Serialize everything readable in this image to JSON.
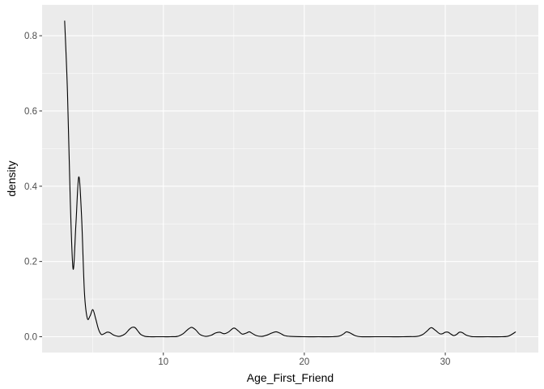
{
  "chart_data": {
    "type": "line",
    "title": "",
    "xlabel": "Age_First_Friend",
    "ylabel": "density",
    "xlim": [
      1.4,
      36.6
    ],
    "ylim": [
      -0.042,
      0.882
    ],
    "x_ticks": [
      10,
      20,
      30
    ],
    "y_ticks": [
      0.0,
      0.2,
      0.4,
      0.6,
      0.8
    ],
    "x_tick_labels": [
      "10",
      "20",
      "30"
    ],
    "y_tick_labels": [
      "0.0",
      "0.2",
      "0.4",
      "0.6",
      "0.8"
    ],
    "grid": true,
    "legend": "none",
    "series": [
      {
        "color": "#000000",
        "x": [
          3.0,
          3.2,
          3.4,
          3.6,
          3.8,
          4.0,
          4.2,
          4.4,
          4.6,
          4.8,
          5.0,
          5.2,
          5.4,
          5.6,
          5.8,
          6.0,
          6.2,
          6.5,
          6.8,
          7.0,
          7.3,
          7.6,
          7.8,
          8.0,
          8.2,
          8.4,
          8.7,
          9.0,
          9.5,
          10.0,
          10.5,
          11.0,
          11.4,
          11.7,
          12.0,
          12.3,
          12.6,
          13.0,
          13.4,
          13.7,
          14.0,
          14.3,
          14.6,
          15.0,
          15.3,
          15.6,
          15.9,
          16.1,
          16.3,
          16.6,
          17.0,
          17.4,
          17.7,
          18.0,
          18.3,
          18.6,
          19.0,
          20.0,
          21.0,
          22.0,
          22.5,
          22.8,
          23.0,
          23.3,
          23.6,
          24.0,
          25.0,
          26.0,
          27.0,
          28.0,
          28.4,
          28.7,
          29.0,
          29.3,
          29.6,
          29.8,
          30.0,
          30.2,
          30.4,
          30.6,
          30.8,
          31.0,
          31.2,
          31.5,
          31.8,
          32.0,
          33.0,
          34.0,
          34.5,
          35.0
        ],
        "y": [
          0.84,
          0.65,
          0.36,
          0.18,
          0.3,
          0.425,
          0.32,
          0.12,
          0.05,
          0.055,
          0.072,
          0.048,
          0.02,
          0.006,
          0.008,
          0.012,
          0.011,
          0.004,
          0.001,
          0.002,
          0.008,
          0.02,
          0.025,
          0.024,
          0.015,
          0.006,
          0.001,
          0.0,
          0.0,
          0.0,
          0.0,
          0.001,
          0.008,
          0.018,
          0.025,
          0.018,
          0.006,
          0.001,
          0.004,
          0.01,
          0.012,
          0.008,
          0.012,
          0.023,
          0.016,
          0.007,
          0.01,
          0.013,
          0.009,
          0.003,
          0.001,
          0.005,
          0.01,
          0.013,
          0.009,
          0.003,
          0.001,
          0.0,
          0.0,
          0.0,
          0.002,
          0.008,
          0.013,
          0.009,
          0.003,
          0.0,
          0.0,
          0.0,
          0.0,
          0.001,
          0.006,
          0.015,
          0.024,
          0.017,
          0.008,
          0.008,
          0.012,
          0.012,
          0.007,
          0.003,
          0.006,
          0.012,
          0.011,
          0.004,
          0.001,
          0.0,
          0.0,
          0.0,
          0.002,
          0.013
        ]
      }
    ]
  }
}
